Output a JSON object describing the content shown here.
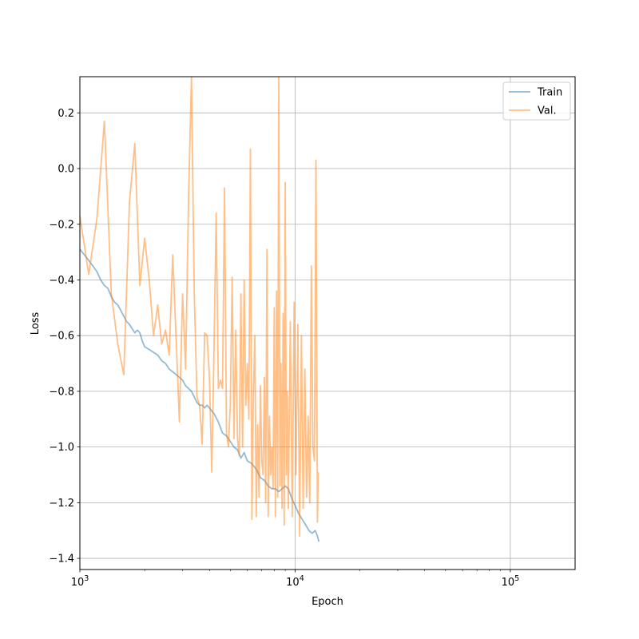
{
  "chart_data": {
    "type": "line",
    "title": "",
    "xlabel": "Epoch",
    "ylabel": "Loss",
    "xscale": "log",
    "xlim": [
      1000,
      200000
    ],
    "ylim": [
      -1.44,
      0.33
    ],
    "grid": true,
    "legend_position": "top-right",
    "x_ticks": [
      {
        "value": 1000,
        "base": "10",
        "exp": "3"
      },
      {
        "value": 10000,
        "base": "10",
        "exp": "4"
      },
      {
        "value": 100000,
        "base": "10",
        "exp": "5"
      }
    ],
    "y_ticks": [
      {
        "value": 0.2,
        "label": "0.2"
      },
      {
        "value": 0.0,
        "label": "0.0"
      },
      {
        "value": -0.2,
        "label": "−0.2"
      },
      {
        "value": -0.4,
        "label": "−0.4"
      },
      {
        "value": -0.6,
        "label": "−0.6"
      },
      {
        "value": -0.8,
        "label": "−0.8"
      },
      {
        "value": -1.0,
        "label": "−1.0"
      },
      {
        "value": -1.2,
        "label": "−1.2"
      },
      {
        "value": -1.4,
        "label": "−1.4"
      }
    ],
    "series": [
      {
        "name": "Train",
        "color": "#1f77b4",
        "opacity": 0.5,
        "points": [
          [
            1000,
            -0.29
          ],
          [
            1050,
            -0.31
          ],
          [
            1100,
            -0.33
          ],
          [
            1150,
            -0.35
          ],
          [
            1200,
            -0.37
          ],
          [
            1250,
            -0.4
          ],
          [
            1300,
            -0.42
          ],
          [
            1350,
            -0.43
          ],
          [
            1400,
            -0.46
          ],
          [
            1450,
            -0.48
          ],
          [
            1500,
            -0.49
          ],
          [
            1550,
            -0.51
          ],
          [
            1600,
            -0.53
          ],
          [
            1650,
            -0.55
          ],
          [
            1700,
            -0.56
          ],
          [
            1750,
            -0.575
          ],
          [
            1800,
            -0.59
          ],
          [
            1850,
            -0.58
          ],
          [
            1900,
            -0.59
          ],
          [
            1950,
            -0.62
          ],
          [
            2000,
            -0.64
          ],
          [
            2100,
            -0.65
          ],
          [
            2200,
            -0.66
          ],
          [
            2300,
            -0.67
          ],
          [
            2400,
            -0.69
          ],
          [
            2500,
            -0.7
          ],
          [
            2600,
            -0.72
          ],
          [
            2700,
            -0.73
          ],
          [
            2800,
            -0.74
          ],
          [
            2900,
            -0.75
          ],
          [
            3000,
            -0.76
          ],
          [
            3100,
            -0.78
          ],
          [
            3200,
            -0.79
          ],
          [
            3300,
            -0.8
          ],
          [
            3400,
            -0.82
          ],
          [
            3500,
            -0.84
          ],
          [
            3600,
            -0.85
          ],
          [
            3700,
            -0.85
          ],
          [
            3800,
            -0.86
          ],
          [
            3900,
            -0.85
          ],
          [
            4000,
            -0.86
          ],
          [
            4200,
            -0.88
          ],
          [
            4400,
            -0.91
          ],
          [
            4600,
            -0.95
          ],
          [
            4800,
            -0.96
          ],
          [
            5000,
            -0.98
          ],
          [
            5200,
            -1.0
          ],
          [
            5400,
            -1.01
          ],
          [
            5600,
            -1.04
          ],
          [
            5800,
            -1.02
          ],
          [
            6000,
            -1.05
          ],
          [
            6300,
            -1.06
          ],
          [
            6600,
            -1.08
          ],
          [
            6900,
            -1.11
          ],
          [
            7200,
            -1.12
          ],
          [
            7500,
            -1.14
          ],
          [
            7800,
            -1.15
          ],
          [
            8100,
            -1.15
          ],
          [
            8400,
            -1.16
          ],
          [
            8700,
            -1.15
          ],
          [
            9000,
            -1.14
          ],
          [
            9300,
            -1.15
          ],
          [
            9600,
            -1.18
          ],
          [
            10000,
            -1.21
          ],
          [
            10400,
            -1.24
          ],
          [
            10800,
            -1.26
          ],
          [
            11200,
            -1.28
          ],
          [
            11600,
            -1.3
          ],
          [
            12000,
            -1.31
          ],
          [
            12400,
            -1.3
          ],
          [
            12700,
            -1.32
          ],
          [
            12900,
            -1.34
          ]
        ]
      },
      {
        "name": "Val.",
        "color": "#ff7f0e",
        "opacity": 0.5,
        "points": [
          [
            1000,
            -0.17
          ],
          [
            1100,
            -0.38
          ],
          [
            1200,
            -0.18
          ],
          [
            1300,
            0.17
          ],
          [
            1400,
            -0.45
          ],
          [
            1500,
            -0.63
          ],
          [
            1600,
            -0.74
          ],
          [
            1700,
            -0.12
          ],
          [
            1800,
            0.09
          ],
          [
            1900,
            -0.42
          ],
          [
            2000,
            -0.25
          ],
          [
            2100,
            -0.4
          ],
          [
            2200,
            -0.6
          ],
          [
            2300,
            -0.49
          ],
          [
            2400,
            -0.63
          ],
          [
            2500,
            -0.58
          ],
          [
            2600,
            -0.67
          ],
          [
            2700,
            -0.31
          ],
          [
            2800,
            -0.61
          ],
          [
            2900,
            -0.91
          ],
          [
            3000,
            -0.45
          ],
          [
            3100,
            -0.72
          ],
          [
            3200,
            -0.1
          ],
          [
            3300,
            0.33
          ],
          [
            3400,
            -0.45
          ],
          [
            3500,
            -0.82
          ],
          [
            3600,
            -0.85
          ],
          [
            3700,
            -0.99
          ],
          [
            3800,
            -0.59
          ],
          [
            3900,
            -0.6
          ],
          [
            4000,
            -0.75
          ],
          [
            4100,
            -1.09
          ],
          [
            4200,
            -0.65
          ],
          [
            4300,
            -0.16
          ],
          [
            4400,
            -0.79
          ],
          [
            4500,
            -0.76
          ],
          [
            4600,
            -0.79
          ],
          [
            4700,
            -0.07
          ],
          [
            4800,
            -0.95
          ],
          [
            4900,
            -1.0
          ],
          [
            5000,
            -0.85
          ],
          [
            5100,
            -0.39
          ],
          [
            5200,
            -0.97
          ],
          [
            5300,
            -0.58
          ],
          [
            5400,
            -0.97
          ],
          [
            5500,
            -1.03
          ],
          [
            5600,
            -0.45
          ],
          [
            5700,
            -1.0
          ],
          [
            5800,
            -0.4
          ],
          [
            5900,
            -0.85
          ],
          [
            6000,
            -0.7
          ],
          [
            6100,
            -0.9
          ],
          [
            6200,
            0.07
          ],
          [
            6300,
            -1.26
          ],
          [
            6400,
            -0.81
          ],
          [
            6500,
            -0.6
          ],
          [
            6600,
            -1.25
          ],
          [
            6700,
            -0.92
          ],
          [
            6800,
            -1.18
          ],
          [
            6900,
            -0.78
          ],
          [
            7000,
            -1.05
          ],
          [
            7100,
            -1.1
          ],
          [
            7200,
            -0.75
          ],
          [
            7300,
            -1.2
          ],
          [
            7400,
            -0.29
          ],
          [
            7500,
            -1.25
          ],
          [
            7600,
            -0.89
          ],
          [
            7700,
            -1.1
          ],
          [
            7800,
            -1.0
          ],
          [
            7900,
            -1.15
          ],
          [
            8000,
            -0.5
          ],
          [
            8100,
            -1.25
          ],
          [
            8200,
            -0.44
          ],
          [
            8300,
            -1.18
          ],
          [
            8400,
            0.33
          ],
          [
            8500,
            -1.14
          ],
          [
            8600,
            -0.7
          ],
          [
            8700,
            -1.22
          ],
          [
            8800,
            -0.52
          ],
          [
            8900,
            -1.28
          ],
          [
            9000,
            -0.05
          ],
          [
            9100,
            -1.1
          ],
          [
            9200,
            -0.8
          ],
          [
            9300,
            -1.22
          ],
          [
            9500,
            -0.55
          ],
          [
            9700,
            -1.25
          ],
          [
            9900,
            -0.48
          ],
          [
            10100,
            -1.1
          ],
          [
            10300,
            -0.56
          ],
          [
            10500,
            -1.32
          ],
          [
            10700,
            -0.6
          ],
          [
            10900,
            -1.22
          ],
          [
            11100,
            -0.72
          ],
          [
            11300,
            -1.18
          ],
          [
            11500,
            -0.89
          ],
          [
            11700,
            -1.2
          ],
          [
            11900,
            -0.35
          ],
          [
            12100,
            -1.0
          ],
          [
            12300,
            -1.05
          ],
          [
            12500,
            0.03
          ],
          [
            12700,
            -1.27
          ],
          [
            12800,
            -1.09
          ]
        ]
      }
    ]
  }
}
